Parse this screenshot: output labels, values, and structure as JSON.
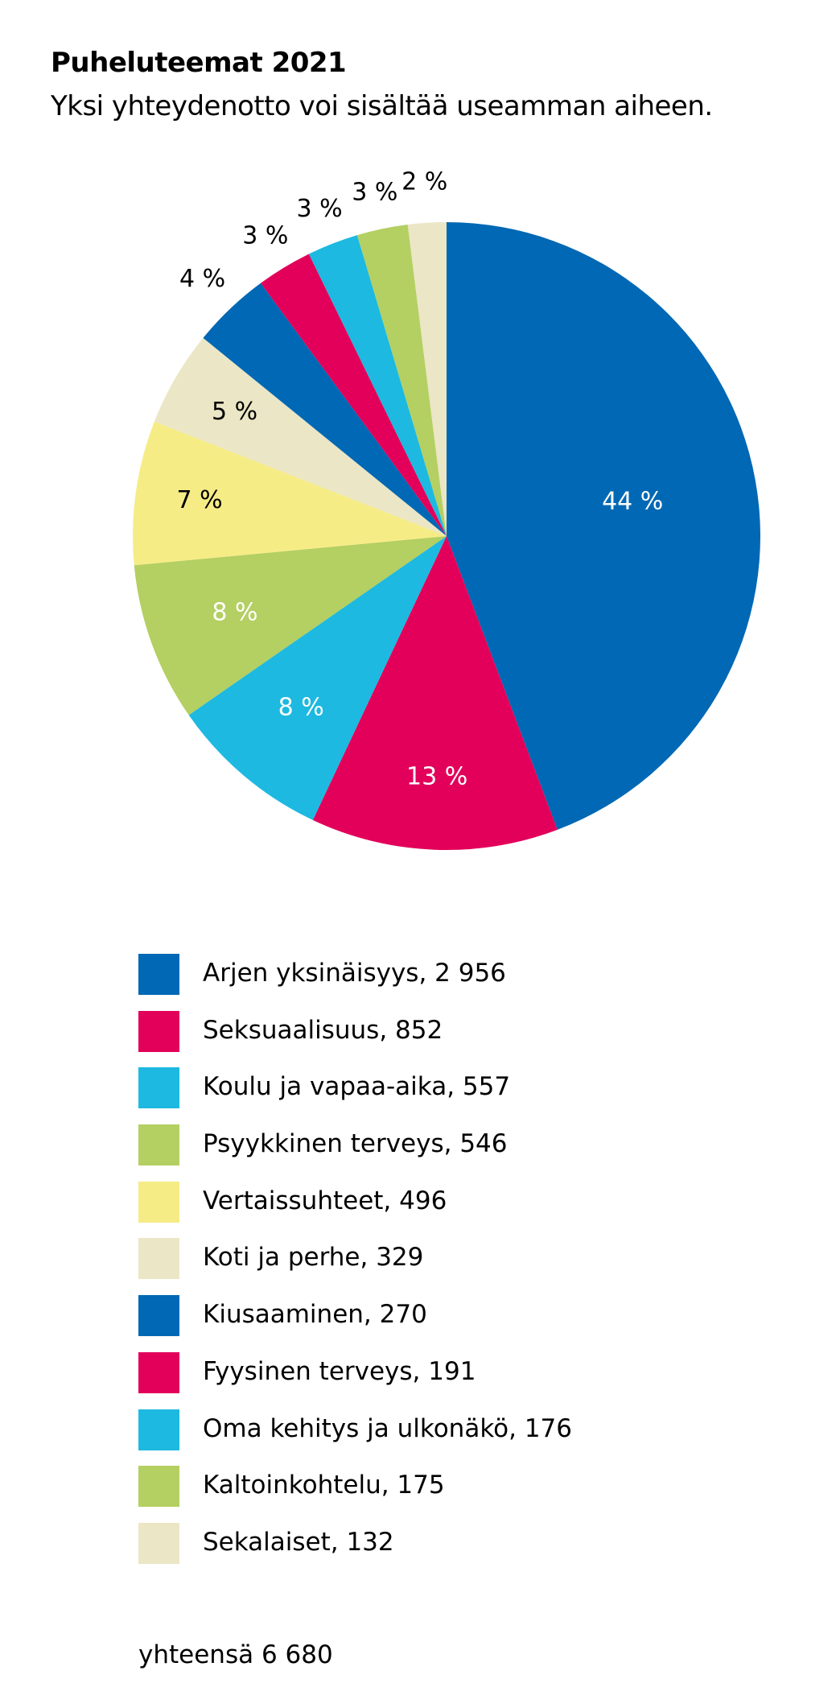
{
  "header": {
    "title": "Puheluteemat 2021",
    "subtitle": "Yksi yhteydenotto voi sisältää useamman aiheen."
  },
  "colors": {
    "blue": "#0068b4",
    "magenta": "#e2005a",
    "cyan": "#1db9e0",
    "green": "#b4cf62",
    "yellow": "#f6ec86",
    "beige": "#ebe6c5"
  },
  "chart_data": {
    "type": "pie",
    "start_angle_deg": 0,
    "direction": "clockwise",
    "slices": [
      {
        "label": "Arjen yksinäisyys",
        "value": 2956,
        "pct_label": "44 %",
        "color": "#0068b4"
      },
      {
        "label": "Seksuaalisuus",
        "value": 852,
        "pct_label": "13 %",
        "color": "#e2005a"
      },
      {
        "label": "Koulu ja vapaa-aika",
        "value": 557,
        "pct_label": "8 %",
        "color": "#1db9e0"
      },
      {
        "label": "Psyykkinen terveys",
        "value": 546,
        "pct_label": "8 %",
        "color": "#b4cf62"
      },
      {
        "label": "Vertaissuhteet",
        "value": 496,
        "pct_label": "7 %",
        "color": "#f6ec86"
      },
      {
        "label": "Koti ja perhe",
        "value": 329,
        "pct_label": "5 %",
        "color": "#ebe6c5"
      },
      {
        "label": "Kiusaaminen",
        "value": 270,
        "pct_label": "4 %",
        "color": "#0068b4"
      },
      {
        "label": "Fyysinen terveys",
        "value": 191,
        "pct_label": "3 %",
        "color": "#e2005a"
      },
      {
        "label": "Oma kehitys ja ulkonäkö",
        "value": 176,
        "pct_label": "3 %",
        "color": "#1db9e0"
      },
      {
        "label": "Kaltoinkohtelu",
        "value": 175,
        "pct_label": "3 %",
        "color": "#b4cf62"
      },
      {
        "label": "Sekalaiset",
        "value": 132,
        "pct_label": "2 %",
        "color": "#ebe6c5"
      }
    ]
  },
  "legend": {
    "items": [
      "Arjen yksinäisyys, 2 956",
      "Seksuaalisuus, 852",
      "Koulu ja vapaa-aika, 557",
      "Psyykkinen terveys, 546",
      "Vertaissuhteet, 496",
      "Koti ja perhe, 329",
      "Kiusaaminen, 270",
      "Fyysinen terveys, 191",
      "Oma kehitys ja ulkonäkö, 176",
      "Kaltoinkohtelu, 175",
      "Sekalaiset, 132"
    ]
  },
  "footer": {
    "total": "yhteensä 6 680"
  }
}
